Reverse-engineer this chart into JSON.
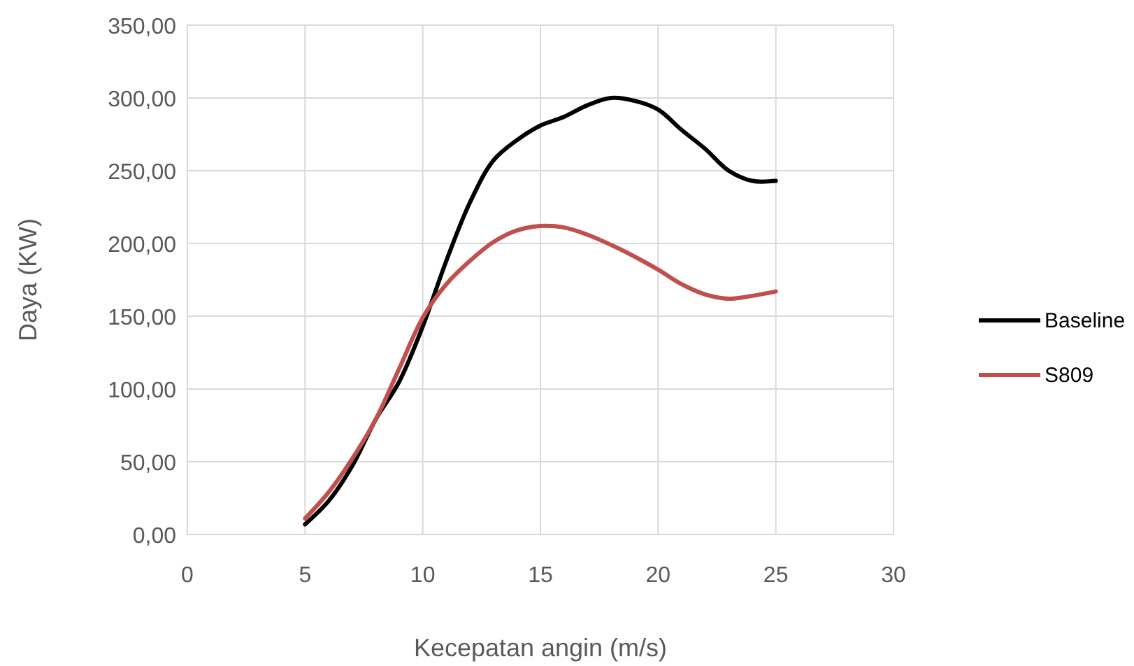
{
  "chart_data": {
    "type": "line",
    "xlabel": "Kecepatan angin (m/s)",
    "ylabel": "Daya (KW)",
    "x": [
      5,
      6,
      7,
      8,
      9,
      10,
      11,
      12,
      13,
      14,
      15,
      16,
      17,
      18,
      19,
      20,
      21,
      22,
      23,
      24,
      25
    ],
    "series": [
      {
        "name": "Baseline",
        "color": "#000000",
        "values": [
          7,
          23,
          47,
          79,
          105,
          143,
          188,
          228,
          257,
          271,
          281,
          287,
          295,
          300,
          298,
          292,
          278,
          265,
          250,
          243,
          243
        ]
      },
      {
        "name": "S809",
        "color": "#c0504d",
        "values": [
          11,
          29,
          52,
          79,
          114,
          149,
          172,
          188,
          201,
          209,
          212,
          211,
          206,
          199,
          191,
          182,
          172,
          165,
          162,
          164,
          167
        ]
      }
    ],
    "xlim": [
      0,
      30
    ],
    "xticks": [
      0,
      5,
      10,
      15,
      20,
      25,
      30
    ],
    "ylim": [
      0,
      350
    ],
    "yticks": [
      {
        "value": 0,
        "label": "0,00"
      },
      {
        "value": 50,
        "label": "50,00"
      },
      {
        "value": 100,
        "label": "100,00"
      },
      {
        "value": 150,
        "label": "150,00"
      },
      {
        "value": 200,
        "label": "200,00"
      },
      {
        "value": 250,
        "label": "250,00"
      },
      {
        "value": 300,
        "label": "300,00"
      },
      {
        "value": 350,
        "label": "350,00"
      }
    ],
    "grid": true,
    "legend": "right",
    "marker": "none",
    "line_style": "solid"
  }
}
